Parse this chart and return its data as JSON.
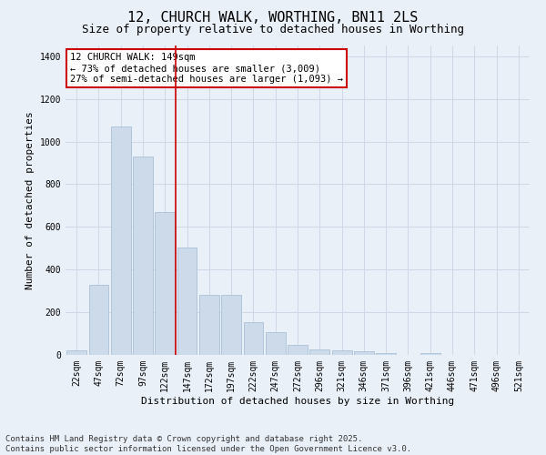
{
  "title": "12, CHURCH WALK, WORTHING, BN11 2LS",
  "subtitle": "Size of property relative to detached houses in Worthing",
  "xlabel": "Distribution of detached houses by size in Worthing",
  "ylabel": "Number of detached properties",
  "categories": [
    "22sqm",
    "47sqm",
    "72sqm",
    "97sqm",
    "122sqm",
    "147sqm",
    "172sqm",
    "197sqm",
    "222sqm",
    "247sqm",
    "272sqm",
    "296sqm",
    "321sqm",
    "346sqm",
    "371sqm",
    "396sqm",
    "421sqm",
    "446sqm",
    "471sqm",
    "496sqm",
    "521sqm"
  ],
  "values": [
    20,
    330,
    1070,
    930,
    670,
    505,
    280,
    280,
    155,
    108,
    45,
    25,
    20,
    15,
    8,
    0,
    8,
    0,
    0,
    0,
    0
  ],
  "bar_color": "#ccdaea",
  "bar_edge_color": "#aac0d8",
  "annotation_text": "12 CHURCH WALK: 149sqm\n← 73% of detached houses are smaller (3,009)\n27% of semi-detached houses are larger (1,093) →",
  "annotation_box_color": "#ffffff",
  "annotation_box_edge_color": "#cc0000",
  "vline_color": "#cc0000",
  "ylim": [
    0,
    1450
  ],
  "grid_color": "#d0d8e8",
  "background_color": "#eaf0f8",
  "footer_text": "Contains HM Land Registry data © Crown copyright and database right 2025.\nContains public sector information licensed under the Open Government Licence v3.0.",
  "title_fontsize": 11,
  "subtitle_fontsize": 9,
  "axis_label_fontsize": 8,
  "tick_fontsize": 7,
  "annotation_fontsize": 7.5,
  "footer_fontsize": 6.5,
  "vline_index": 4.5
}
